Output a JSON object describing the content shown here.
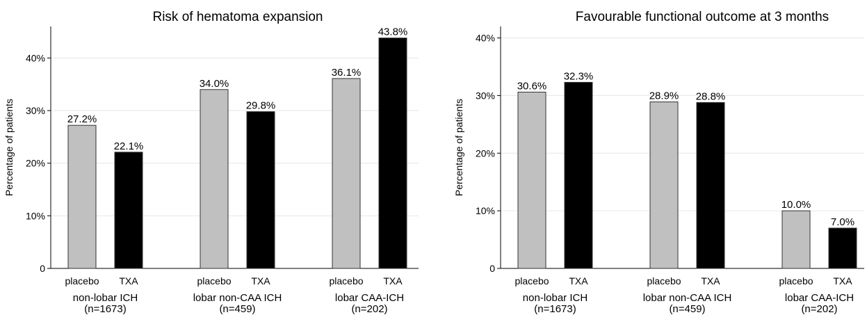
{
  "chart_data": [
    {
      "type": "bar",
      "title": "Risk of hematoma expansion",
      "ylabel": "Percentage of patients",
      "ylim": [
        0,
        46
      ],
      "yticks": [
        {
          "value": 0,
          "label": "0"
        },
        {
          "value": 10,
          "label": "10%"
        },
        {
          "value": 20,
          "label": "20%"
        },
        {
          "value": 30,
          "label": "30%"
        },
        {
          "value": 40,
          "label": "40%"
        }
      ],
      "groups": [
        {
          "label": "non-lobar ICH",
          "n": "(n=1673)",
          "bars": [
            {
              "category": "placebo",
              "value": 27.2,
              "label": "27.2%",
              "color": "#c0c0c0"
            },
            {
              "category": "TXA",
              "value": 22.1,
              "label": "22.1%",
              "color": "#000000"
            }
          ]
        },
        {
          "label": "lobar non-CAA ICH",
          "n": "(n=459)",
          "bars": [
            {
              "category": "placebo",
              "value": 34.0,
              "label": "34.0%",
              "color": "#c0c0c0"
            },
            {
              "category": "TXA",
              "value": 29.8,
              "label": "29.8%",
              "color": "#000000"
            }
          ]
        },
        {
          "label": "lobar CAA-ICH",
          "n": "(n=202)",
          "bars": [
            {
              "category": "placebo",
              "value": 36.1,
              "label": "36.1%",
              "color": "#c0c0c0"
            },
            {
              "category": "TXA",
              "value": 43.8,
              "label": "43.8%",
              "color": "#000000"
            }
          ]
        }
      ]
    },
    {
      "type": "bar",
      "title": "Favourable functional outcome at 3 months",
      "ylabel": "Percentage of patients",
      "ylim": [
        0,
        42
      ],
      "yticks": [
        {
          "value": 0,
          "label": "0"
        },
        {
          "value": 10,
          "label": "10%"
        },
        {
          "value": 20,
          "label": "20%"
        },
        {
          "value": 30,
          "label": "30%"
        },
        {
          "value": 40,
          "label": "40%"
        }
      ],
      "groups": [
        {
          "label": "non-lobar ICH",
          "n": "(n=1673)",
          "bars": [
            {
              "category": "placebo",
              "value": 30.6,
              "label": "30.6%",
              "color": "#c0c0c0"
            },
            {
              "category": "TXA",
              "value": 32.3,
              "label": "32.3%",
              "color": "#000000"
            }
          ]
        },
        {
          "label": "lobar non-CAA ICH",
          "n": "(n=459)",
          "bars": [
            {
              "category": "placebo",
              "value": 28.9,
              "label": "28.9%",
              "color": "#c0c0c0"
            },
            {
              "category": "TXA",
              "value": 28.8,
              "label": "28.8%",
              "color": "#000000"
            }
          ]
        },
        {
          "label": "lobar CAA-ICH",
          "n": "(n=202)",
          "bars": [
            {
              "category": "placebo",
              "value": 10.0,
              "label": "10.0%",
              "color": "#c0c0c0"
            },
            {
              "category": "TXA",
              "value": 7.0,
              "label": "7.0%",
              "color": "#000000"
            }
          ]
        }
      ]
    }
  ]
}
